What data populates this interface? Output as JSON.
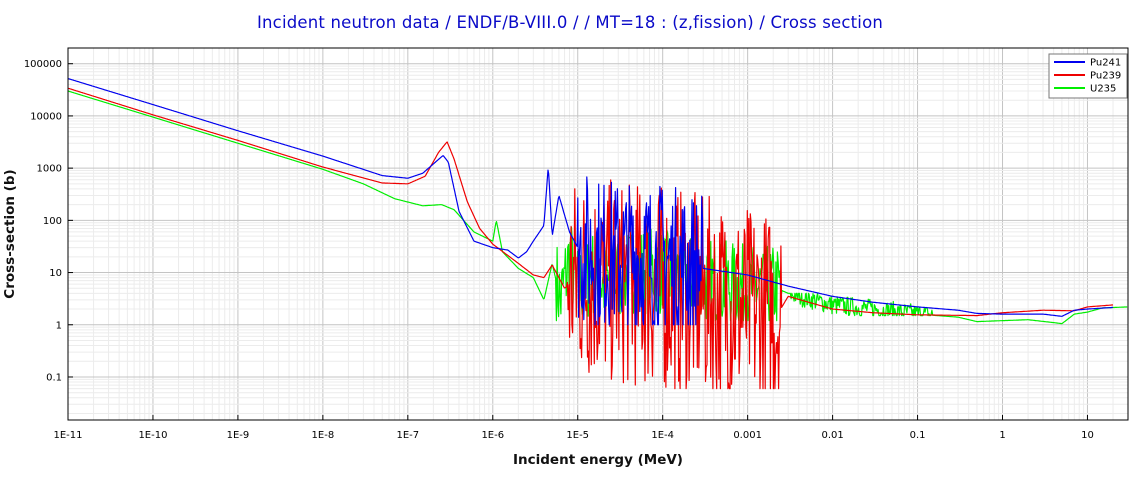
{
  "chart_data": {
    "type": "line",
    "title": "Incident neutron data / ENDF/B-VIII.0 / / MT=18 : (z,fission) / Cross section",
    "xlabel": "Incident energy (MeV)",
    "ylabel": "Cross-section (b)",
    "x_scale": "log",
    "y_scale": "log",
    "xlim": [
      1e-11,
      30
    ],
    "ylim": [
      0.015,
      200000
    ],
    "grid": true,
    "legend_position": "top-right",
    "x_ticks": [
      {
        "value": 1e-11,
        "label": "1E-11"
      },
      {
        "value": 1e-10,
        "label": "1E-10"
      },
      {
        "value": 1e-09,
        "label": "1E-9"
      },
      {
        "value": 1e-08,
        "label": "1E-8"
      },
      {
        "value": 1e-07,
        "label": "1E-7"
      },
      {
        "value": 1e-06,
        "label": "1E-6"
      },
      {
        "value": 1e-05,
        "label": "1E-5"
      },
      {
        "value": 0.0001,
        "label": "1E-4"
      },
      {
        "value": 0.001,
        "label": "0.001"
      },
      {
        "value": 0.01,
        "label": "0.01"
      },
      {
        "value": 0.1,
        "label": "0.1"
      },
      {
        "value": 1,
        "label": "1"
      },
      {
        "value": 10,
        "label": "10"
      }
    ],
    "y_ticks": [
      {
        "value": 0.1,
        "label": "0.1"
      },
      {
        "value": 1,
        "label": "1"
      },
      {
        "value": 10,
        "label": "10"
      },
      {
        "value": 100,
        "label": "100"
      },
      {
        "value": 1000,
        "label": "1000"
      },
      {
        "value": 10000,
        "label": "10000"
      },
      {
        "value": 100000,
        "label": "100000"
      }
    ],
    "series": [
      {
        "name": "U235",
        "color": "#00ee00",
        "points": [
          [
            1e-11,
            30000
          ],
          [
            1e-10,
            9500
          ],
          [
            1e-09,
            3000
          ],
          [
            1e-08,
            950
          ],
          [
            3e-08,
            500
          ],
          [
            7e-08,
            260
          ],
          [
            1.5e-07,
            190
          ],
          [
            2.5e-07,
            200
          ],
          [
            3.5e-07,
            160
          ],
          [
            6e-07,
            60
          ],
          [
            1e-06,
            40
          ],
          [
            1.1e-06,
            100
          ],
          [
            1.3e-06,
            25
          ],
          [
            2e-06,
            12
          ],
          [
            3e-06,
            8
          ],
          [
            4e-06,
            3
          ],
          [
            5e-06,
            15
          ],
          [
            6.3e-06,
            3
          ],
          [
            8e-06,
            20
          ],
          [
            1e-05,
            5
          ],
          [
            1.5e-05,
            10
          ],
          [
            2e-05,
            6
          ],
          [
            5e-05,
            12
          ],
          [
            0.0001,
            10
          ],
          [
            0.0003,
            7
          ],
          [
            0.001,
            5
          ],
          [
            0.0022,
            5
          ],
          [
            0.003,
            4
          ],
          [
            0.01,
            2.4
          ],
          [
            0.03,
            2
          ],
          [
            0.1,
            1.6
          ],
          [
            0.3,
            1.4
          ],
          [
            0.5,
            1.15
          ],
          [
            1,
            1.2
          ],
          [
            2,
            1.25
          ],
          [
            4,
            1.1
          ],
          [
            5,
            1.05
          ],
          [
            7,
            1.6
          ],
          [
            10,
            1.75
          ],
          [
            15,
            2.1
          ],
          [
            30,
            2.2
          ]
        ]
      },
      {
        "name": "Pu239",
        "color": "#ee0000",
        "points": [
          [
            1e-11,
            34000
          ],
          [
            1e-10,
            10500
          ],
          [
            1e-09,
            3400
          ],
          [
            1e-08,
            1050
          ],
          [
            5e-08,
            520
          ],
          [
            1e-07,
            500
          ],
          [
            1.6e-07,
            700
          ],
          [
            2.3e-07,
            2000
          ],
          [
            2.9e-07,
            3200
          ],
          [
            3.5e-07,
            1500
          ],
          [
            5e-07,
            230
          ],
          [
            7e-07,
            70
          ],
          [
            1e-06,
            35
          ],
          [
            2e-06,
            15
          ],
          [
            3e-06,
            9
          ],
          [
            4e-06,
            8
          ],
          [
            5e-06,
            14
          ],
          [
            7e-06,
            5
          ],
          [
            1e-05,
            8
          ],
          [
            3e-05,
            6
          ],
          [
            0.0001,
            5
          ],
          [
            0.001,
            2
          ],
          [
            0.0022,
            1.5
          ],
          [
            0.003,
            3.5
          ],
          [
            0.01,
            2
          ],
          [
            0.03,
            1.7
          ],
          [
            0.1,
            1.55
          ],
          [
            0.5,
            1.5
          ],
          [
            1,
            1.7
          ],
          [
            3,
            1.9
          ],
          [
            7,
            1.85
          ],
          [
            10,
            2.2
          ],
          [
            20,
            2.4
          ]
        ]
      },
      {
        "name": "Pu241",
        "color": "#0000ee",
        "points": [
          [
            1e-11,
            52000
          ],
          [
            1e-10,
            16500
          ],
          [
            1e-09,
            5200
          ],
          [
            1e-08,
            1700
          ],
          [
            5e-08,
            720
          ],
          [
            1e-07,
            640
          ],
          [
            1.5e-07,
            800
          ],
          [
            2.6e-07,
            1750
          ],
          [
            3e-07,
            1300
          ],
          [
            4e-07,
            150
          ],
          [
            6e-07,
            40
          ],
          [
            1e-06,
            30
          ],
          [
            1.5e-06,
            27
          ],
          [
            2e-06,
            19
          ],
          [
            2.5e-06,
            25
          ],
          [
            3e-06,
            40
          ],
          [
            4e-06,
            80
          ],
          [
            4.5e-06,
            1100
          ],
          [
            5e-06,
            50
          ],
          [
            6e-06,
            300
          ],
          [
            8e-06,
            60
          ],
          [
            1e-05,
            30
          ],
          [
            3e-05,
            20
          ],
          [
            0.0001,
            18
          ],
          [
            0.0003,
            12
          ],
          [
            0.001,
            9
          ],
          [
            0.003,
            5.5
          ],
          [
            0.01,
            3.5
          ],
          [
            0.03,
            2.7
          ],
          [
            0.1,
            2.2
          ],
          [
            0.3,
            1.9
          ],
          [
            0.5,
            1.65
          ],
          [
            1,
            1.6
          ],
          [
            3,
            1.6
          ],
          [
            5,
            1.45
          ],
          [
            7,
            1.9
          ],
          [
            10,
            2
          ],
          [
            20,
            2.15
          ]
        ]
      }
    ],
    "noisy_regions": [
      {
        "series": "U235",
        "xmin": 5.5e-06,
        "xmax": 0.0025,
        "ymin": 1.2,
        "ymax": 90
      },
      {
        "series": "U235",
        "xmin": 0.003,
        "xmax": 0.15,
        "ymin": 1.5,
        "ymax": 4
      },
      {
        "series": "Pu239",
        "xmin": 7.5e-06,
        "xmax": 0.0025,
        "ymin": 0.06,
        "ymax": 1600
      },
      {
        "series": "Pu241",
        "xmin": 1e-05,
        "xmax": 0.0003,
        "ymin": 1,
        "ymax": 2000
      }
    ]
  }
}
